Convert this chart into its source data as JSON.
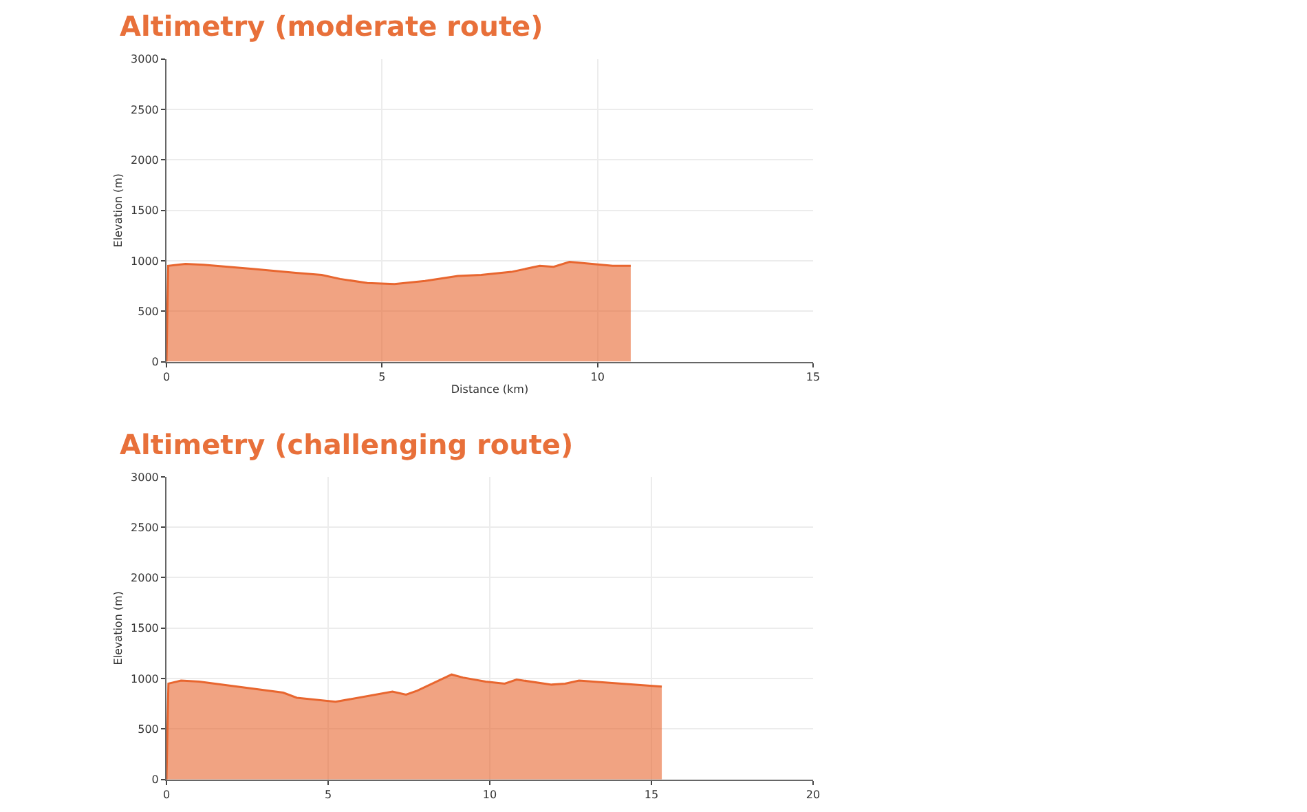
{
  "chart_data": [
    {
      "type": "area",
      "title": "Altimetry (moderate route)",
      "xlabel": "Distance (km)",
      "ylabel": "Elevation (m)",
      "xlim": [
        0,
        15
      ],
      "xticks": [
        0,
        5,
        10,
        15
      ],
      "ylim": [
        0,
        3000
      ],
      "yticks": [
        0,
        500,
        1000,
        1500,
        2000,
        2500,
        3000
      ],
      "grid": true,
      "series": [
        {
          "color": "#e8662f",
          "x": [
            0,
            0.04,
            0.44,
            0.86,
            2.0,
            3.0,
            3.6,
            4.03,
            4.66,
            5.29,
            6.0,
            6.76,
            7.3,
            8.0,
            8.66,
            8.98,
            9.35,
            10.35,
            10.77
          ],
          "values": [
            0,
            950,
            970,
            960,
            920,
            880,
            860,
            820,
            780,
            770,
            800,
            850,
            860,
            890,
            950,
            940,
            990,
            950,
            950
          ]
        }
      ]
    },
    {
      "type": "area",
      "title": "Altimetry (challenging route)",
      "ylabel": "Elevation (m)",
      "xlim": [
        0,
        20
      ],
      "xticks": [
        0,
        5,
        10,
        15,
        20
      ],
      "ylim": [
        0,
        3000
      ],
      "yticks": [
        0,
        500,
        1000,
        1500,
        2000,
        2500,
        3000
      ],
      "grid": true,
      "series": [
        {
          "color": "#e8662f",
          "x": [
            0,
            0.06,
            0.45,
            1.01,
            3.61,
            4.03,
            5.23,
            6.99,
            7.41,
            7.76,
            8.82,
            9.17,
            9.87,
            10.46,
            10.83,
            11.91,
            12.33,
            12.76,
            15.32
          ],
          "values": [
            0,
            950,
            980,
            970,
            860,
            810,
            770,
            870,
            840,
            880,
            1040,
            1010,
            970,
            950,
            990,
            940,
            950,
            980,
            920
          ]
        }
      ]
    }
  ]
}
